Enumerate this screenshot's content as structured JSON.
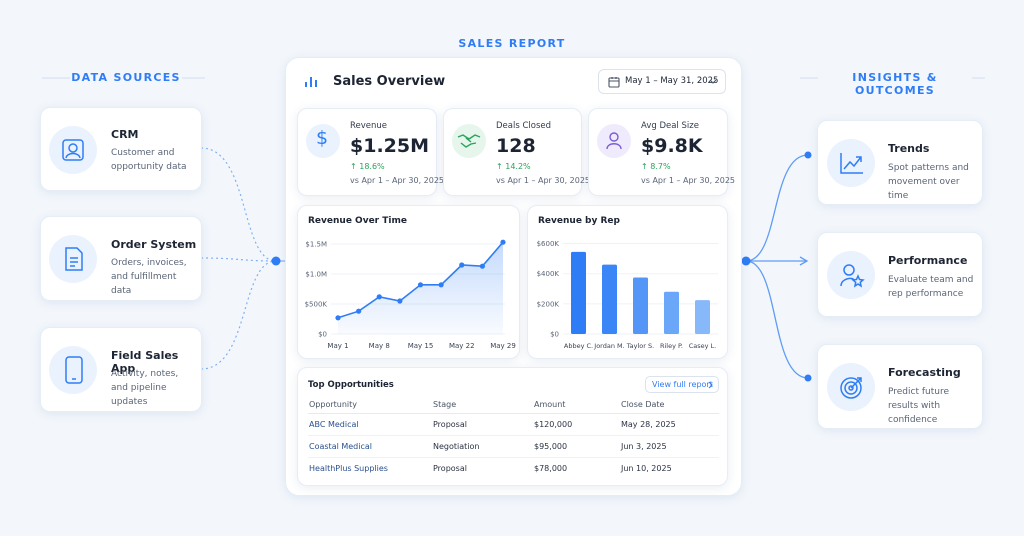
{
  "title": "SALES REPORT",
  "sources": {
    "heading": "DATA SOURCES",
    "items": [
      {
        "title": "CRM",
        "text": "Customer and opportunity data"
      },
      {
        "title": "Order System",
        "text": "Orders, invoices, and fulfillment data"
      },
      {
        "title": "Field Sales App",
        "text": "Activity, notes, and pipeline updates"
      }
    ]
  },
  "insights": {
    "heading": "INSIGHTS & OUTCOMES",
    "items": [
      {
        "title": "Trends",
        "text": "Spot patterns and movement over time"
      },
      {
        "title": "Performance",
        "text": "Evaluate team and rep performance"
      },
      {
        "title": "Forecasting",
        "text": "Predict future results with confidence"
      }
    ]
  },
  "dashboard": {
    "title": "Sales Overview",
    "date_range": "May 1 – May 31, 2025",
    "kpis": [
      {
        "label": "Revenue",
        "value": "$1.25M",
        "change": "↑ 18.6%",
        "compare": "vs Apr 1 – Apr 30, 2025"
      },
      {
        "label": "Deals Closed",
        "value": "128",
        "change": "↑ 14.2%",
        "compare": "vs Apr 1 – Apr 30, 2025"
      },
      {
        "label": "Avg Deal Size",
        "value": "$9.8K",
        "change": "↑ 8.7%",
        "compare": "vs Apr 1 – Apr 30, 2025"
      }
    ],
    "revenue_chart": {
      "type": "line",
      "title": "Revenue Over Time",
      "categories": [
        "May 1",
        null,
        "May 8",
        null,
        "May 15",
        null,
        "May 22",
        null,
        "May 29"
      ],
      "values": [
        270000,
        380000,
        620000,
        550000,
        820000,
        820000,
        1150000,
        1130000,
        1530000
      ],
      "color": "#2f7df6",
      "ylim": [
        0,
        1600000
      ],
      "yticks": [
        {
          "value": 0,
          "label": "$0"
        },
        {
          "value": 500000,
          "label": "$500K"
        },
        {
          "value": 1000000,
          "label": "$1.0M"
        },
        {
          "value": 1500000,
          "label": "$1.5M"
        }
      ]
    },
    "rep_chart": {
      "type": "bar",
      "title": "Revenue by Rep",
      "categories": [
        "Abbey C.",
        "Jordan M.",
        "Taylor S.",
        "Riley P.",
        "Casey L."
      ],
      "values": [
        545000,
        460000,
        375000,
        280000,
        225000
      ],
      "colors": [
        "#2f7df6",
        "#3b86f6",
        "#5396f7",
        "#6ba7f8",
        "#86b8fa"
      ],
      "ylim": [
        0,
        650000
      ],
      "yticks": [
        {
          "value": 0,
          "label": "$0"
        },
        {
          "value": 200000,
          "label": "$200K"
        },
        {
          "value": 400000,
          "label": "$400K"
        },
        {
          "value": 600000,
          "label": "$600K"
        }
      ]
    },
    "table": {
      "title": "Top Opportunities",
      "link": "View full report",
      "columns": [
        "Opportunity",
        "Stage",
        "Amount",
        "Close Date"
      ],
      "rows": [
        [
          "ABC Medical",
          "Proposal",
          "$120,000",
          "May 28, 2025"
        ],
        [
          "Coastal Medical",
          "Negotiation",
          "$95,000",
          "Jun 3, 2025"
        ],
        [
          "HealthPlus Supplies",
          "Proposal",
          "$78,000",
          "Jun 10, 2025"
        ]
      ]
    }
  }
}
